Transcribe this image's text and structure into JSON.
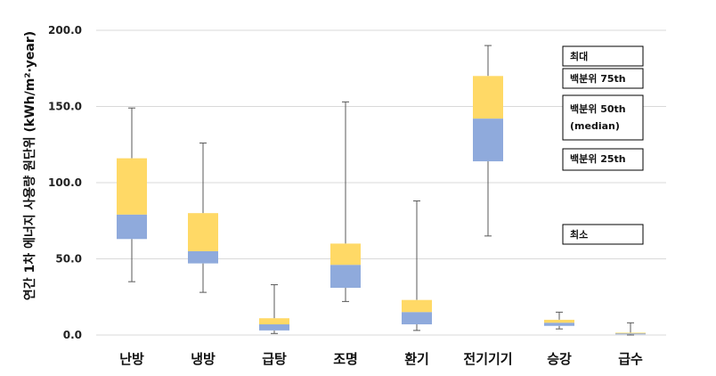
{
  "chart_data": {
    "type": "boxplot",
    "ylabel": "연간 1차 에너지 사용량 원단위 (kWh/m²·year)",
    "ylim": [
      0,
      200
    ],
    "yticks": [
      "0.0",
      "50.0",
      "100.0",
      "150.0",
      "200.0"
    ],
    "grid": "horizontal",
    "categories": [
      "난방",
      "냉방",
      "급탕",
      "조명",
      "환기",
      "전기기기",
      "승강",
      "급수"
    ],
    "boxes": [
      {
        "category": "난방",
        "min": 35,
        "q1": 63,
        "median": 79,
        "q3": 116,
        "max": 149
      },
      {
        "category": "냉방",
        "min": 28,
        "q1": 47,
        "median": 55,
        "q3": 80,
        "max": 126
      },
      {
        "category": "급탕",
        "min": 1,
        "q1": 3,
        "median": 7,
        "q3": 11,
        "max": 33
      },
      {
        "category": "조명",
        "min": 22,
        "q1": 31,
        "median": 46,
        "q3": 60,
        "max": 153
      },
      {
        "category": "환기",
        "min": 3,
        "q1": 7,
        "median": 15,
        "q3": 23,
        "max": 88
      },
      {
        "category": "전기기기",
        "min": 65,
        "q1": 114,
        "median": 142,
        "q3": 170,
        "max": 190
      },
      {
        "category": "승강",
        "min": 4,
        "q1": 6,
        "median": 8,
        "q3": 10,
        "max": 15
      },
      {
        "category": "급수",
        "min": 0,
        "q1": 0.5,
        "median": 1,
        "q3": 1.5,
        "max": 8
      }
    ],
    "colors": {
      "lower_box": "#8faadc",
      "upper_box": "#ffd966",
      "whisker": "#595959",
      "grid": "#d9d9d9"
    },
    "legend": {
      "placement": "right",
      "items": [
        {
          "key": "max",
          "text": "최대"
        },
        {
          "key": "p75",
          "text": "백분위 75th"
        },
        {
          "key": "p50",
          "text": "백분위 50th",
          "subtext": "(median)"
        },
        {
          "key": "p25",
          "text": "백분위 25th"
        },
        {
          "key": "min",
          "text": "최소"
        }
      ]
    }
  }
}
